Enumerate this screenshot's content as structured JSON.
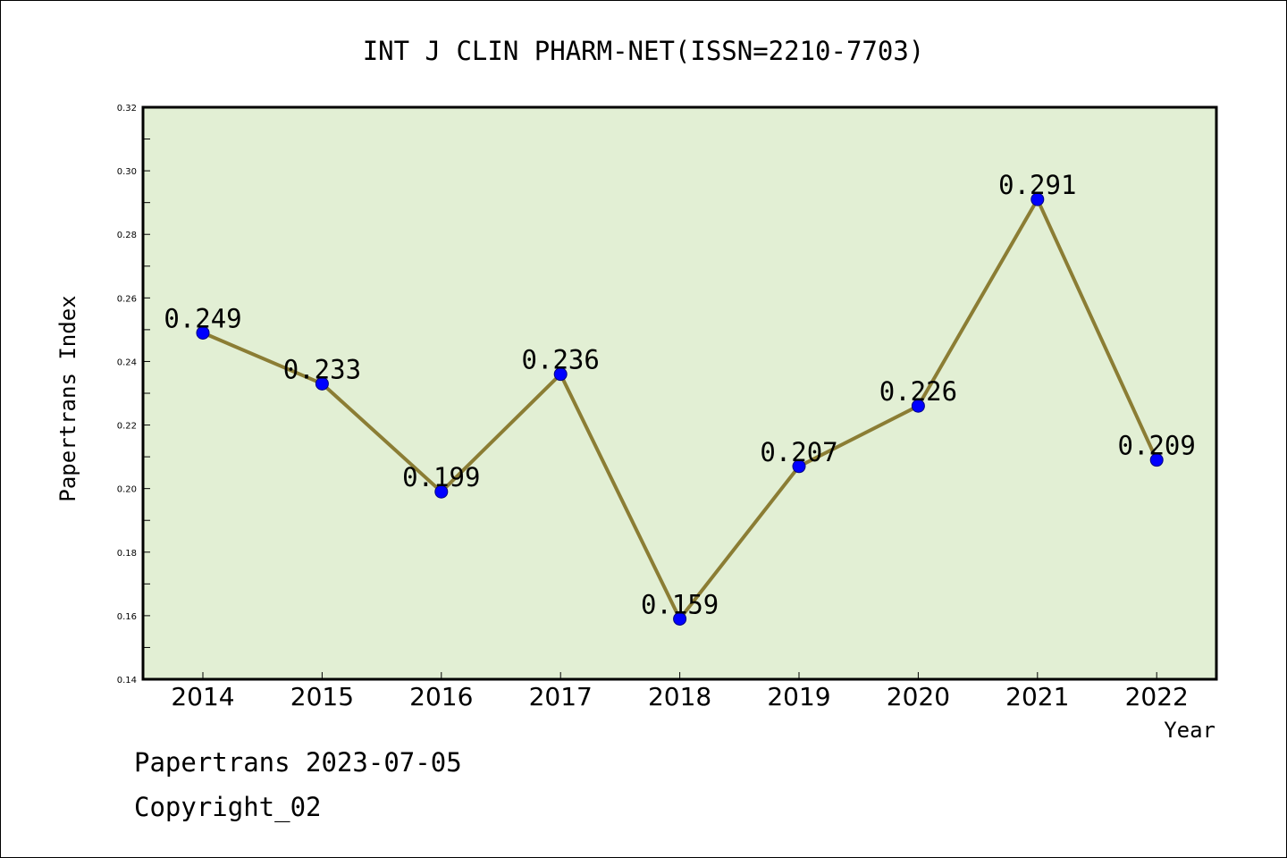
{
  "chart_data": {
    "type": "line",
    "title": "INT J CLIN PHARM-NET(ISSN=2210-7703)",
    "xlabel": "Year",
    "ylabel": "Papertrans Index",
    "categories": [
      "2014",
      "2015",
      "2016",
      "2017",
      "2018",
      "2019",
      "2020",
      "2021",
      "2022"
    ],
    "values": [
      0.249,
      0.233,
      0.199,
      0.236,
      0.159,
      0.207,
      0.226,
      0.291,
      0.209
    ],
    "data_labels": [
      "0.249",
      "0.233",
      "0.199",
      "0.236",
      "0.159",
      "0.207",
      "0.226",
      "0.291",
      "0.209"
    ],
    "ylim": [
      0.14,
      0.32
    ],
    "yticks": [
      "0.14",
      "0.16",
      "0.18",
      "0.20",
      "0.22",
      "0.24",
      "0.26",
      "0.28",
      "0.30",
      "0.32"
    ],
    "grid": false,
    "colors": {
      "plot_background": "#e2efd4",
      "line": "#8b7d34",
      "marker": "#0000ff"
    }
  },
  "footer": {
    "source": "Papertrans 2023-07-05",
    "copyright": "Copyright_02"
  }
}
